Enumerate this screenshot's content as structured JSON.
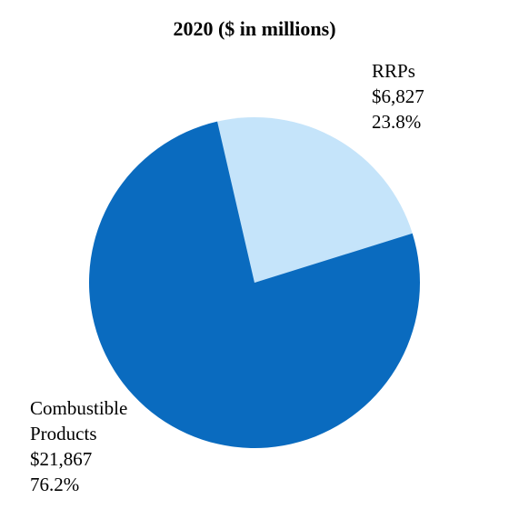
{
  "chart_data": {
    "type": "pie",
    "title": "2020 ($ in millions)",
    "slices": [
      {
        "name": "RRPs",
        "value": 6827,
        "value_label": "$6,827",
        "percent": 23.8,
        "percent_label": "23.8%",
        "color": "#c5e4fa"
      },
      {
        "name": "Combustible Products",
        "name_lines": [
          "Combustible",
          "Products"
        ],
        "value": 21867,
        "value_label": "$21,867",
        "percent": 76.2,
        "percent_label": "76.2%",
        "color": "#0a6bbf"
      }
    ],
    "start_angle_deg": -13,
    "direction": "clockwise"
  }
}
